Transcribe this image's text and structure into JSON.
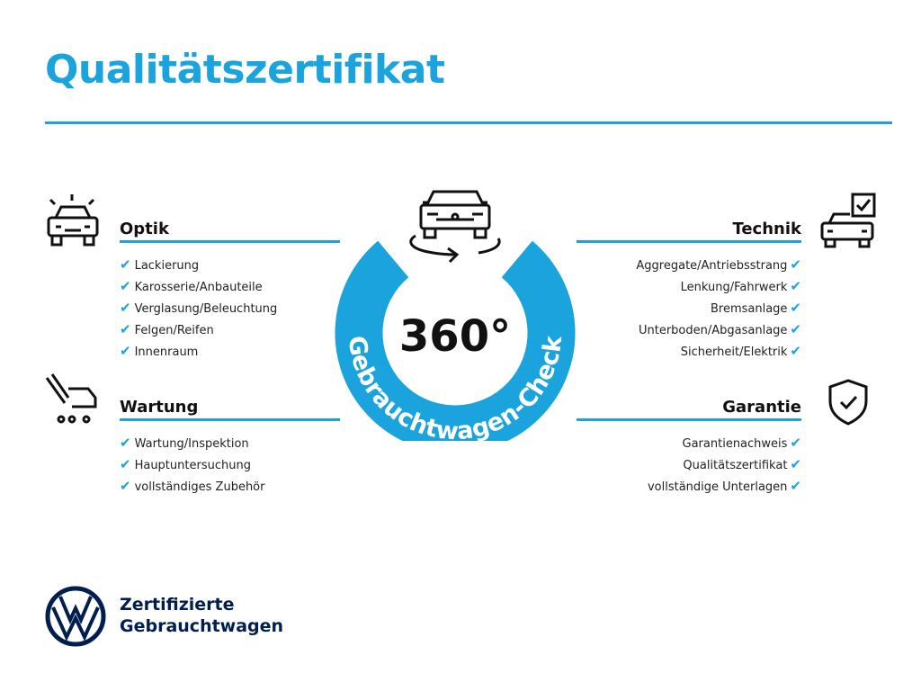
{
  "title": "Qualitätszertifikat",
  "colors": {
    "accent": "#1ba3dd",
    "brand": "#001e50"
  },
  "center": {
    "big": "360°",
    "ring_text": "Gebrauchtwagen-Check",
    "icon": "car-rotate-icon"
  },
  "sections": {
    "optik": {
      "title": "Optik",
      "icon": "car-shine-icon",
      "items": [
        "Lackierung",
        "Karosserie/Anbauteile",
        "Verglasung/Beleuchtung",
        "Felgen/Reifen",
        "Innenraum"
      ]
    },
    "wartung": {
      "title": "Wartung",
      "icon": "car-service-icon",
      "items": [
        "Wartung/Inspektion",
        "Hauptuntersuchung",
        "vollständiges Zubehör"
      ]
    },
    "technik": {
      "title": "Technik",
      "icon": "car-checkbox-icon",
      "items": [
        "Aggregate/Antriebsstrang",
        "Lenkung/Fahrwerk",
        "Bremsanlage",
        "Unterboden/Abgasanlage",
        "Sicherheit/Elektrik"
      ]
    },
    "garantie": {
      "title": "Garantie",
      "icon": "shield-check-icon",
      "items": [
        "Garantienachweis",
        "Qualitätszertifikat",
        "vollständige Unterlagen"
      ]
    }
  },
  "check_mark": "✔",
  "footer": {
    "line1": "Zertifizierte",
    "line2": "Gebrauchtwagen",
    "logo": "VW"
  }
}
